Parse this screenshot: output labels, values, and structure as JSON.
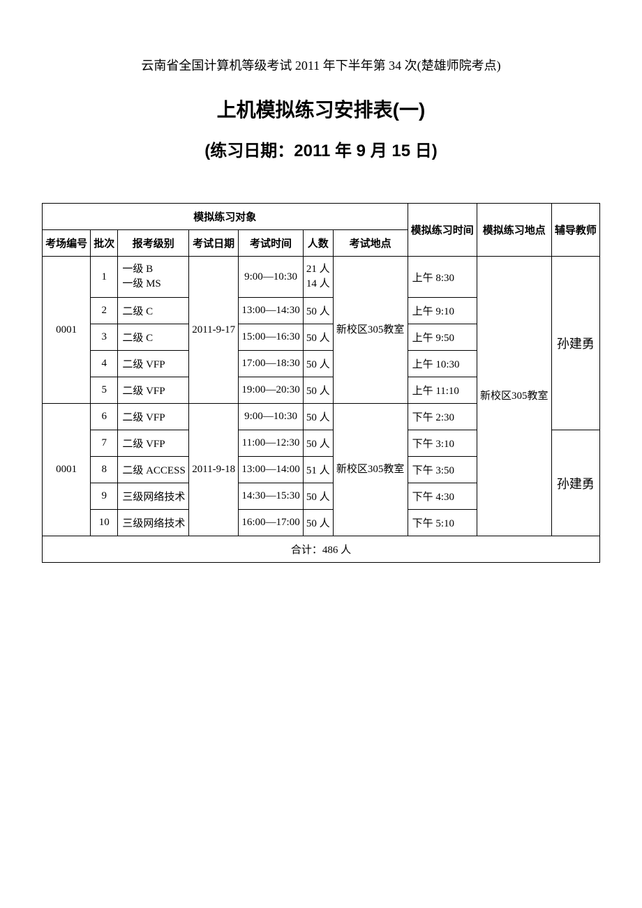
{
  "header_line": "云南省全国计算机等级考试 2011 年下半年第 34 次(楚雄师院考点)",
  "title_main": "上机模拟练习安排表(一)",
  "title_sub": "(练习日期：2011 年 9 月 15 日)",
  "table": {
    "header_group": "模拟练习对象",
    "columns": {
      "room_no": "考场编号",
      "batch": "批次",
      "exam_level": "报考级别",
      "exam_date": "考试日期",
      "exam_time": "考试时间",
      "count": "人数",
      "exam_place": "考试地点",
      "practice_time": "模拟练习时间",
      "practice_place": "模拟练习地点",
      "teacher": "辅导教师"
    },
    "room_no_1": "0001",
    "room_no_2": "0001",
    "exam_date_1": "2011-9-17",
    "exam_date_2": "2011-9-18",
    "exam_place_1": "新校区305教室",
    "exam_place_2": "新校区305教室",
    "practice_place": "新校区305教室",
    "teacher_1": "孙建勇",
    "teacher_2": "孙建勇",
    "rows": [
      {
        "batch": "1",
        "level": "一级 B\n一级 MS",
        "time": "9:00—10:30",
        "count": "21 人\n14 人",
        "ptime": "上午 8:30"
      },
      {
        "batch": "2",
        "level": "二级 C",
        "time": "13:00—14:30",
        "count": "50 人",
        "ptime": "上午 9:10"
      },
      {
        "batch": "3",
        "level": "二级 C",
        "time": "15:00—16:30",
        "count": "50 人",
        "ptime": "上午 9:50"
      },
      {
        "batch": "4",
        "level": "二级 VFP",
        "time": "17:00—18:30",
        "count": "50 人",
        "ptime": "上午 10:30"
      },
      {
        "batch": "5",
        "level": "二级 VFP",
        "time": "19:00—20:30",
        "count": "50 人",
        "ptime": "上午 11:10"
      },
      {
        "batch": "6",
        "level": "二级 VFP",
        "time": "9:00—10:30",
        "count": "50 人",
        "ptime": "下午 2:30"
      },
      {
        "batch": "7",
        "level": "二级 VFP",
        "time": "11:00—12:30",
        "count": "50 人",
        "ptime": "下午 3:10"
      },
      {
        "batch": "8",
        "level": "二级 ACCESS",
        "time": "13:00—14:00",
        "count": "51 人",
        "ptime": "下午 3:50"
      },
      {
        "batch": "9",
        "level": "三级网络技术",
        "time": "14:30—15:30",
        "count": "50 人",
        "ptime": "下午 4:30"
      },
      {
        "batch": "10",
        "level": "三级网络技术",
        "time": "16:00—17:00",
        "count": "50 人",
        "ptime": "下午 5:10"
      }
    ],
    "total": "合计：486 人"
  }
}
